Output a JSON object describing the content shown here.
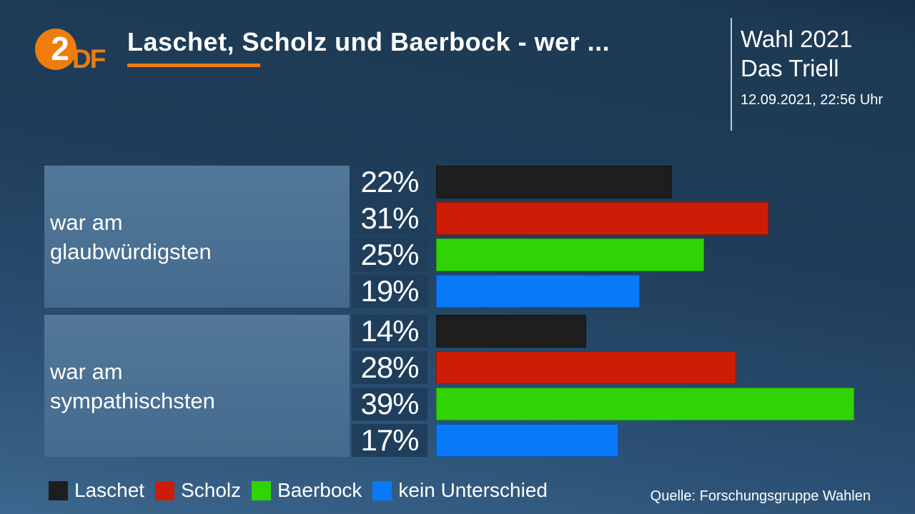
{
  "header": {
    "logo": {
      "circle_glyph": "2",
      "df_glyph": "DF"
    },
    "title": "Laschet, Scholz und Baerbock - wer ...",
    "program": {
      "line1": "Wahl 2021",
      "line2": "Das Triell",
      "datetime": "12.09.2021, 22:56 Uhr"
    }
  },
  "chart_data": {
    "type": "bar",
    "orientation": "horizontal",
    "unit": "%",
    "title": "Laschet, Scholz und Baerbock - wer ...",
    "categories": [
      "Laschet",
      "Scholz",
      "Baerbock",
      "kein Unterschied"
    ],
    "colors": {
      "Laschet": "#1e1e1e",
      "Scholz": "#cd1d06",
      "Baerbock": "#2fd306",
      "kein Unterschied": "#0879f8"
    },
    "groups": [
      {
        "label_lines": [
          "war am",
          "glaubwürdigsten"
        ],
        "values": [
          22,
          31,
          25,
          19
        ]
      },
      {
        "label_lines": [
          "war am",
          "sympathischsten"
        ],
        "values": [
          14,
          28,
          39,
          17
        ]
      }
    ],
    "legend": [
      "Laschet",
      "Scholz",
      "Baerbock",
      "kein Unterschied"
    ],
    "source": "Quelle: Forschungsgruppe Wahlen",
    "accent_orange": "#ec7b13",
    "value_box_color": "#1e3e5c",
    "label_box_color": "#4a7093"
  }
}
